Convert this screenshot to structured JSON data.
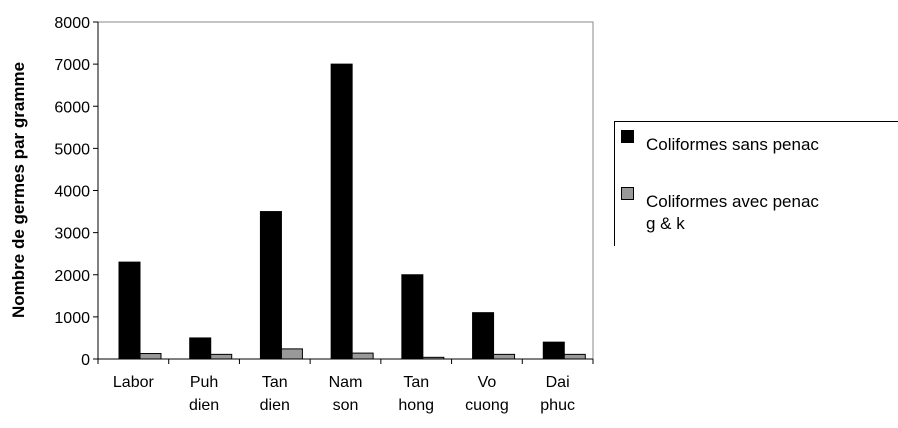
{
  "chart_data": {
    "type": "bar",
    "title": "",
    "xlabel": "",
    "ylabel": "Nombre de germes par gramme",
    "ylim": [
      0,
      8000
    ],
    "yticks": [
      0,
      1000,
      2000,
      3000,
      4000,
      5000,
      6000,
      7000,
      8000
    ],
    "grid": false,
    "legend_position": "right",
    "categories": [
      "Labor",
      "Puh\ndien",
      "Tan\ndien",
      "Nam\nson",
      "Tan\nhong",
      "Vo\ncuong",
      "Dai\nphuc"
    ],
    "series": [
      {
        "name": "Coliformes sans penac",
        "color": "#000000",
        "values": [
          2300,
          500,
          3500,
          7000,
          2000,
          1100,
          400
        ]
      },
      {
        "name": "Coliformes avec penac\ng & k",
        "color": "#999999",
        "values": [
          130,
          110,
          240,
          140,
          40,
          110,
          110
        ]
      }
    ]
  }
}
